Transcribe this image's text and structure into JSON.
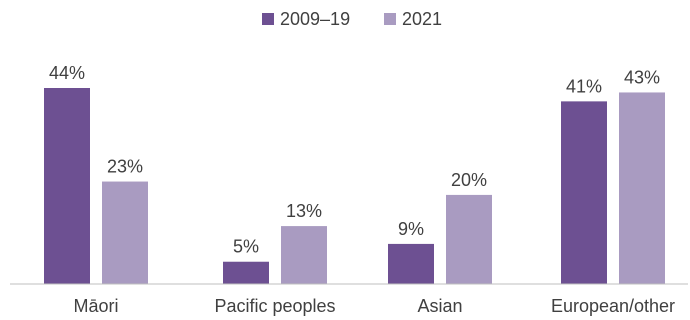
{
  "chart_data": {
    "type": "bar",
    "title": "",
    "xlabel": "",
    "ylabel": "",
    "ylim": [
      0,
      44
    ],
    "grid": false,
    "legend_position": "top-center",
    "categories": [
      "Māori",
      "Pacific peoples",
      "Asian",
      "European/other"
    ],
    "series": [
      {
        "name": "2009–19",
        "color": "#6d5092",
        "values": [
          44,
          5,
          9,
          41
        ]
      },
      {
        "name": "2021",
        "color": "#a99bc1",
        "values": [
          23,
          13,
          20,
          43
        ]
      }
    ],
    "value_suffix": "%"
  }
}
